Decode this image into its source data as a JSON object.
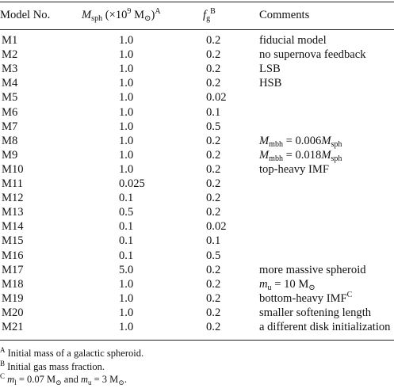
{
  "table": {
    "headers": {
      "model": "Model No.",
      "msph_sym": "M",
      "msph_sub": "sph",
      "msph_unit_pre": " (×10",
      "msph_unit_exp": "9",
      "msph_unit_post": " M",
      "msph_unit_sun": "⊙",
      "msph_unit_close": ")",
      "msph_note": "A",
      "fg_sym": "f",
      "fg_sub": "g",
      "fg_note": "B",
      "comments": "Comments"
    },
    "rows": [
      {
        "model": "M1",
        "msph": "1.0",
        "fg": "0.2",
        "comment": "fiducial model"
      },
      {
        "model": "M2",
        "msph": "1.0",
        "fg": "0.2",
        "comment": "no supernova feedback"
      },
      {
        "model": "M3",
        "msph": "1.0",
        "fg": "0.2",
        "comment": "LSB"
      },
      {
        "model": "M4",
        "msph": "1.0",
        "fg": "0.2",
        "comment": "HSB"
      },
      {
        "model": "M5",
        "msph": "1.0",
        "fg": "0.02",
        "comment": ""
      },
      {
        "model": "M6",
        "msph": "1.0",
        "fg": "0.1",
        "comment": ""
      },
      {
        "model": "M7",
        "msph": "1.0",
        "fg": "0.5",
        "comment": ""
      },
      {
        "model": "M8",
        "msph": "1.0",
        "fg": "0.2",
        "comment": "",
        "math": {
          "lhs": "M",
          "lhs_sub": "mbh",
          "eq": " = 0.006",
          "rhs": "M",
          "rhs_sub": "sph"
        }
      },
      {
        "model": "M9",
        "msph": "1.0",
        "fg": "0.2",
        "comment": "",
        "math": {
          "lhs": "M",
          "lhs_sub": "mbh",
          "eq": " = 0.018",
          "rhs": "M",
          "rhs_sub": "sph"
        }
      },
      {
        "model": "M10",
        "msph": "1.0",
        "fg": "0.2",
        "comment": "top-heavy IMF"
      },
      {
        "model": "M11",
        "msph": "0.025",
        "fg": "0.2",
        "comment": ""
      },
      {
        "model": "M12",
        "msph": "0.1",
        "fg": "0.2",
        "comment": ""
      },
      {
        "model": "M13",
        "msph": "0.5",
        "fg": "0.2",
        "comment": ""
      },
      {
        "model": "M14",
        "msph": "0.1",
        "fg": "0.02",
        "comment": ""
      },
      {
        "model": "M15",
        "msph": "0.1",
        "fg": "0.1",
        "comment": ""
      },
      {
        "model": "M16",
        "msph": "0.1",
        "fg": "0.5",
        "comment": ""
      },
      {
        "model": "M17",
        "msph": "5.0",
        "fg": "0.2",
        "comment": "more massive spheroid"
      },
      {
        "model": "M18",
        "msph": "1.0",
        "fg": "0.2",
        "comment": "",
        "mu": {
          "sym": "m",
          "sub": "u",
          "eq": " = 10 M",
          "sun": "⊙"
        }
      },
      {
        "model": "M19",
        "msph": "1.0",
        "fg": "0.2",
        "comment": "bottom-heavy IMF",
        "sup": "C"
      },
      {
        "model": "M20",
        "msph": "1.0",
        "fg": "0.2",
        "comment": "smaller softening length"
      },
      {
        "model": "M21",
        "msph": "1.0",
        "fg": "0.2",
        "comment": "a different disk initialization"
      }
    ]
  },
  "notes": {
    "a_mark": "A",
    "a_text": " Initial mass of a galactic spheroid.",
    "b_mark": "B",
    "b_text": " Initial gas mass fraction.",
    "c_mark": "C",
    "c_m1": "m",
    "c_m1_sub": "l",
    "c_m1_eq": " = 0.07 M",
    "c_sun1": "⊙",
    "c_and": " and ",
    "c_mu": "m",
    "c_mu_sub": "u",
    "c_mu_eq": " = 3 M",
    "c_sun2": "⊙",
    "c_end": "."
  }
}
